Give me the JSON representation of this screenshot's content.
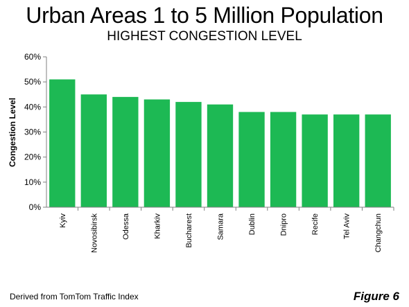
{
  "figure": {
    "source_note": "Derived from TomTom Traffic Index",
    "figure_label": "Figure 6"
  },
  "chart_data": {
    "type": "bar",
    "title": "Urban Areas 1 to 5 Million Population",
    "subtitle": "HIGHEST CONGESTION LEVEL",
    "xlabel": "",
    "ylabel": "Congestion Level",
    "categories": [
      "Kyiv",
      "Novosibirsk",
      "Odessa",
      "Kharkiv",
      "Bucharest",
      "Samara",
      "Dublin",
      "Dnipro",
      "Recife",
      "Tel Aviv",
      "Changchun"
    ],
    "values": [
      51,
      45,
      44,
      43,
      42,
      41,
      38,
      38,
      37,
      37,
      37
    ],
    "ylim": [
      0,
      60
    ],
    "yticks": [
      0,
      10,
      20,
      30,
      40,
      50,
      60
    ],
    "ytick_labels": [
      "0%",
      "10%",
      "20%",
      "30%",
      "40%",
      "50%",
      "60%"
    ],
    "grid": false,
    "legend": "none",
    "bar_color": "#1db954",
    "axis_color": "#808080"
  }
}
